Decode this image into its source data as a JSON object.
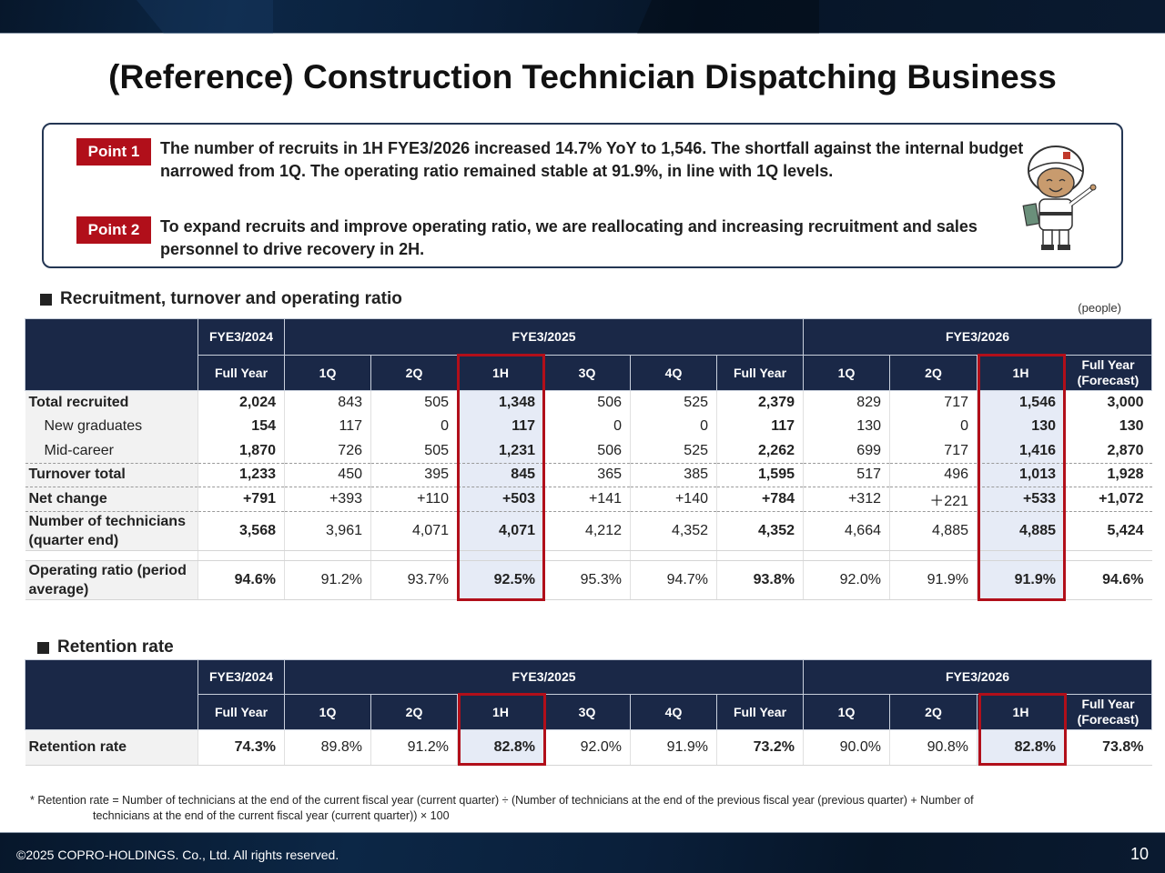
{
  "title": "(Reference) Construction Technician Dispatching Business",
  "points": [
    {
      "badge": "Point 1",
      "text": "The number of recruits in 1H FYE3/2026 increased 14.7% YoY to 1,546. The shortfall against the internal budget narrowed from 1Q. The operating ratio remained stable at 91.9%, in line with 1Q levels."
    },
    {
      "badge": "Point 2",
      "text": "To expand recruits and improve operating ratio, we are reallocating and increasing recruitment and sales personnel to drive recovery in 2H."
    }
  ],
  "recruitment": {
    "section_title": "Recruitment, turnover and operating ratio",
    "unit": "(people)",
    "year_headers": [
      "FYE3/2024",
      "FYE3/2025",
      "FYE3/2026"
    ],
    "period_headers": [
      "Full Year",
      "1Q",
      "2Q",
      "1H",
      "3Q",
      "4Q",
      "Full Year",
      "1Q",
      "2Q",
      "1H",
      "Full Year (Forecast)"
    ],
    "rows": [
      {
        "label": "Total recruited",
        "values": [
          "2,024",
          "843",
          "505",
          "1,348",
          "506",
          "525",
          "2,379",
          "829",
          "717",
          "1,546",
          "3,000"
        ]
      },
      {
        "label": "New graduates",
        "values": [
          "154",
          "117",
          "0",
          "117",
          "0",
          "0",
          "117",
          "130",
          "0",
          "130",
          "130"
        ]
      },
      {
        "label": "Mid-career",
        "values": [
          "1,870",
          "726",
          "505",
          "1,231",
          "506",
          "525",
          "2,262",
          "699",
          "717",
          "1,416",
          "2,870"
        ]
      },
      {
        "label": "Turnover total",
        "values": [
          "1,233",
          "450",
          "395",
          "845",
          "365",
          "385",
          "1,595",
          "517",
          "496",
          "1,013",
          "1,928"
        ]
      },
      {
        "label": "Net change",
        "values": [
          "+791",
          "+393",
          "+110",
          "+503",
          "+141",
          "+140",
          "+784",
          "+312",
          "＋221",
          "+533",
          "+1,072"
        ]
      },
      {
        "label": "Number of technicians (quarter end)",
        "values": [
          "3,568",
          "3,961",
          "4,071",
          "4,071",
          "4,212",
          "4,352",
          "4,352",
          "4,664",
          "4,885",
          "4,885",
          "5,424"
        ]
      },
      {
        "label": "Operating ratio (period average)",
        "values": [
          "94.6%",
          "91.2%",
          "93.7%",
          "92.5%",
          "95.3%",
          "94.7%",
          "93.8%",
          "92.0%",
          "91.9%",
          "91.9%",
          "94.6%"
        ]
      }
    ]
  },
  "retention": {
    "section_title": "Retention rate",
    "year_headers": [
      "FYE3/2024",
      "FYE3/2025",
      "FYE3/2026"
    ],
    "period_headers": [
      "Full Year",
      "1Q",
      "2Q",
      "1H",
      "3Q",
      "4Q",
      "Full Year",
      "1Q",
      "2Q",
      "1H",
      "Full Year (Forecast)"
    ],
    "row": {
      "label": "Retention rate",
      "values": [
        "74.3%",
        "89.8%",
        "91.2%",
        "82.8%",
        "92.0%",
        "91.9%",
        "73.2%",
        "90.0%",
        "90.8%",
        "82.8%",
        "73.8%"
      ]
    }
  },
  "footnote": {
    "line1": "* Retention rate = Number of technicians at the end of the current fiscal year (current quarter) ÷ (Number of technicians at the end of the previous fiscal year (previous quarter) + Number of",
    "line2": "technicians at the end of the current fiscal year (current quarter)) × 100"
  },
  "footer": {
    "copyright": "©2025 COPRO-HOLDINGS. Co., Ltd. All rights reserved.",
    "page_number": "10"
  },
  "colors": {
    "header_navy": "#1a2847",
    "accent_red": "#b10f1a",
    "highlight_fill": "#e6ebf6"
  }
}
